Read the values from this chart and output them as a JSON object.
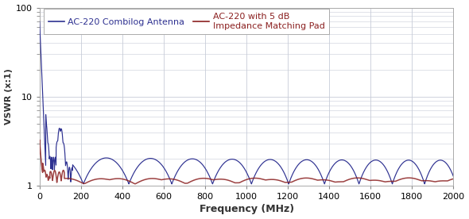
{
  "xlabel": "Frequency (MHz)",
  "ylabel": "VSWR (x:1)",
  "xlim": [
    0,
    2000
  ],
  "ylim": [
    1,
    100
  ],
  "xticks": [
    0,
    200,
    400,
    600,
    800,
    1000,
    1200,
    1400,
    1600,
    1800,
    2000
  ],
  "legend1": "AC-220 Combilog Antenna",
  "legend2_line1": "AC-220 with 5 dB",
  "legend2_line2": "Impedance Matching Pad",
  "line1_color": "#2e3191",
  "line2_color": "#8b2020",
  "background_color": "#ffffff",
  "grid_color": "#c8ccd8",
  "figsize": [
    5.9,
    2.76
  ],
  "dpi": 100,
  "xlabel_fontsize": 9,
  "ylabel_fontsize": 8,
  "tick_fontsize": 8,
  "legend_fontsize": 8
}
